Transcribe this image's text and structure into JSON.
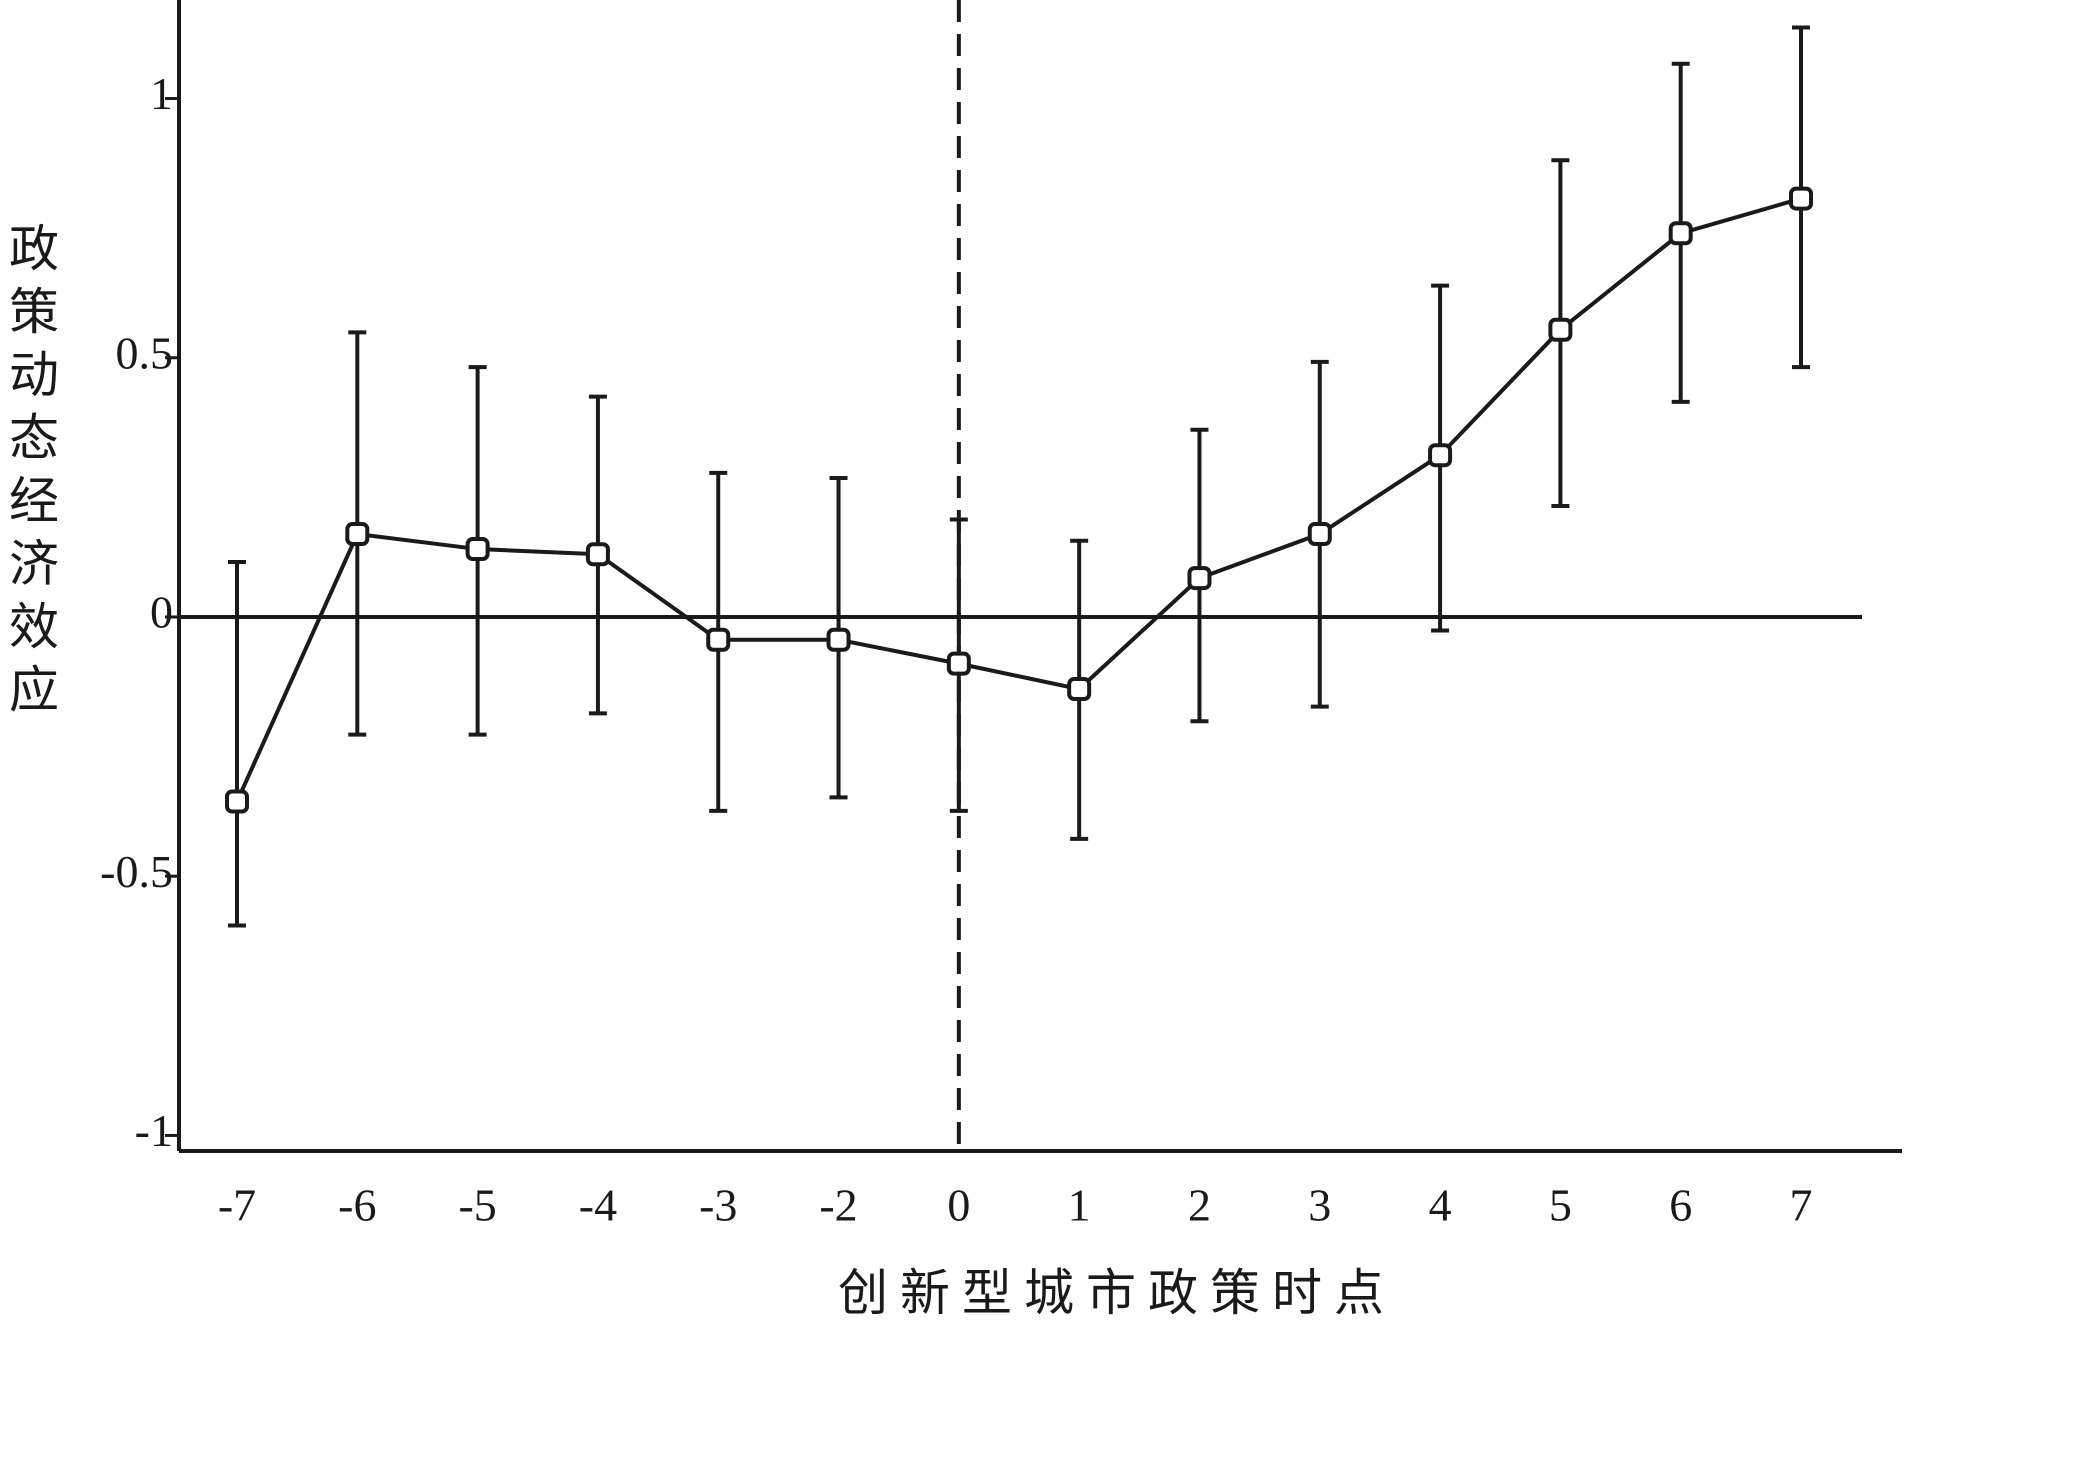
{
  "chart_data": {
    "type": "line",
    "y_label": "政策动态经济效应",
    "x_label": "创新型城市政策时点",
    "categories": [
      "-7",
      "-6",
      "-5",
      "-4",
      "-3",
      "-2",
      "0",
      "1",
      "2",
      "3",
      "4",
      "5",
      "6",
      "7"
    ],
    "series": [
      {
        "color": "#1a1a1a",
        "values": [
          -0.356,
          0.16,
          0.131,
          0.121,
          -0.044,
          -0.044,
          -0.09,
          -0.139,
          0.075,
          0.16,
          0.312,
          0.554,
          0.74,
          0.807
        ],
        "upper": [
          0.106,
          0.549,
          0.482,
          0.425,
          0.278,
          0.268,
          0.188,
          0.147,
          0.361,
          0.492,
          0.639,
          0.881,
          1.067,
          1.137
        ],
        "lower": [
          -0.595,
          -0.227,
          -0.227,
          -0.186,
          -0.374,
          -0.348,
          -0.374,
          -0.428,
          -0.201,
          -0.173,
          -0.026,
          0.214,
          0.415,
          0.482
        ]
      }
    ],
    "ylim": [
      -1.03,
      1.19
    ],
    "yticks": [
      -1,
      -0.5,
      0,
      0.5,
      1
    ],
    "zero_line": true,
    "vline_at": "0",
    "grid": false
  }
}
